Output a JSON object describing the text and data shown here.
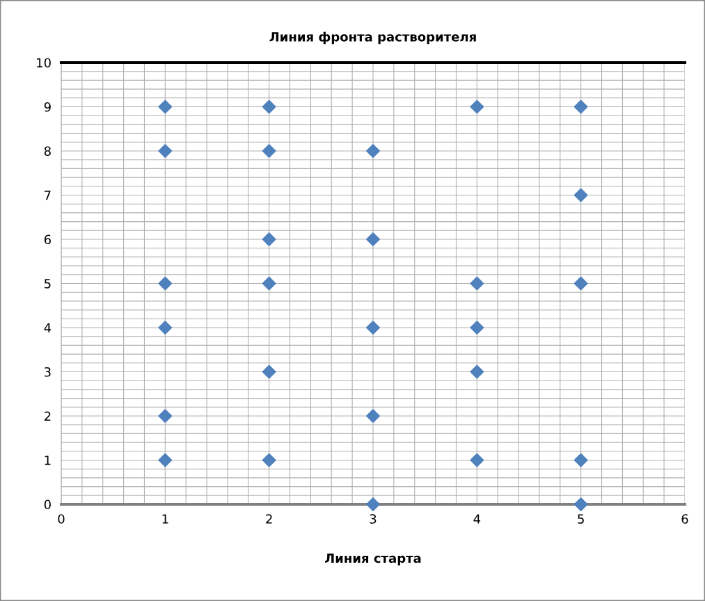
{
  "chart_data": {
    "type": "scatter",
    "title": "Линия фронта растворителя",
    "xlabel": "Линия старта",
    "series": [
      {
        "x": [
          1,
          1,
          1,
          1,
          1,
          1,
          2,
          2,
          2,
          2,
          2,
          2,
          3,
          3,
          3,
          3,
          3,
          4,
          4,
          4,
          4,
          4,
          5,
          5,
          5,
          5,
          5
        ],
        "values": [
          9,
          8,
          5,
          4,
          2,
          1,
          9,
          8,
          6,
          5,
          3,
          1,
          8,
          6,
          4,
          2,
          0,
          9,
          5,
          4,
          3,
          1,
          9,
          7,
          5,
          1,
          0
        ],
        "color": "#4f81bd"
      }
    ],
    "xlim": [
      0,
      6
    ],
    "xticks": [
      0,
      1,
      2,
      3,
      4,
      5,
      6
    ],
    "ylim": [
      0,
      10
    ],
    "yticks": [
      0,
      1,
      2,
      3,
      4,
      5,
      6,
      7,
      8,
      9,
      10
    ],
    "grid": true,
    "marker": "diamond",
    "legend": false,
    "ref_lines": [
      {
        "axis": "y",
        "value": 10,
        "color": "#000000"
      }
    ]
  }
}
